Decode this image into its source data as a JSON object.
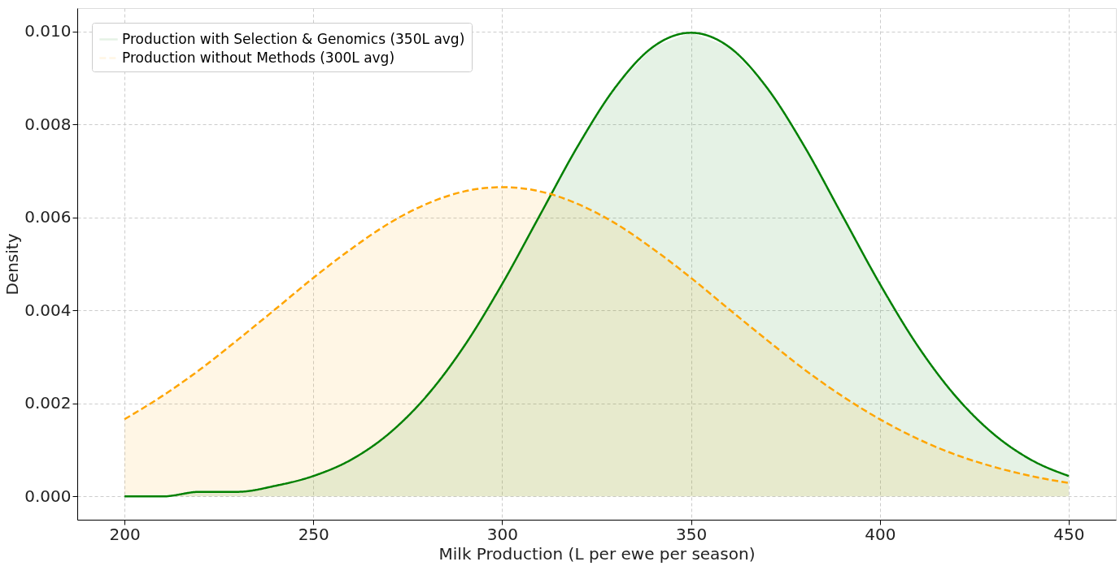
{
  "chart_data": {
    "type": "area",
    "xlabel": "Milk Production (L per ewe per season)",
    "ylabel": "Density",
    "x": [
      200,
      210,
      220,
      230,
      240,
      250,
      260,
      270,
      280,
      290,
      300,
      310,
      320,
      330,
      340,
      350,
      360,
      370,
      380,
      390,
      400,
      410,
      420,
      430,
      440,
      450
    ],
    "series": [
      {
        "name": "Production with Selection & Genomics (350L avg)",
        "color": "#008000",
        "line_style": "solid",
        "values": [
          0.0,
          0.0,
          0.0001,
          0.0001,
          0.00023,
          0.00044,
          0.00079,
          0.00135,
          0.00216,
          0.00324,
          0.00457,
          0.00605,
          0.00753,
          0.0088,
          0.00967,
          0.00997,
          0.00967,
          0.0088,
          0.00753,
          0.00605,
          0.00457,
          0.00324,
          0.00216,
          0.00135,
          0.00079,
          0.00044
        ]
      },
      {
        "name": "Production without Methods (300L avg)",
        "color": "#ffa500",
        "line_style": "dashed",
        "values": [
          0.00166,
          0.00216,
          0.00273,
          0.00337,
          0.00403,
          0.0047,
          0.00532,
          0.00587,
          0.00629,
          0.00656,
          0.00665,
          0.00656,
          0.00629,
          0.00587,
          0.00532,
          0.0047,
          0.00403,
          0.00337,
          0.00273,
          0.00216,
          0.00166,
          0.00124,
          0.0009,
          0.00064,
          0.00044,
          0.00029
        ]
      }
    ],
    "xlim": [
      187.5,
      462.5
    ],
    "xticks": [
      200,
      250,
      300,
      350,
      400,
      450
    ],
    "ylim": [
      -0.0005,
      0.0105
    ],
    "yticks": [
      {
        "value": 0,
        "label": "0.000"
      },
      {
        "value": 0.002,
        "label": "0.002"
      },
      {
        "value": 0.004,
        "label": "0.004"
      },
      {
        "value": 0.006,
        "label": "0.006"
      },
      {
        "value": 0.008,
        "label": "0.008"
      },
      {
        "value": 0.01,
        "label": "0.010"
      }
    ],
    "grid": true,
    "legend": "top left"
  }
}
